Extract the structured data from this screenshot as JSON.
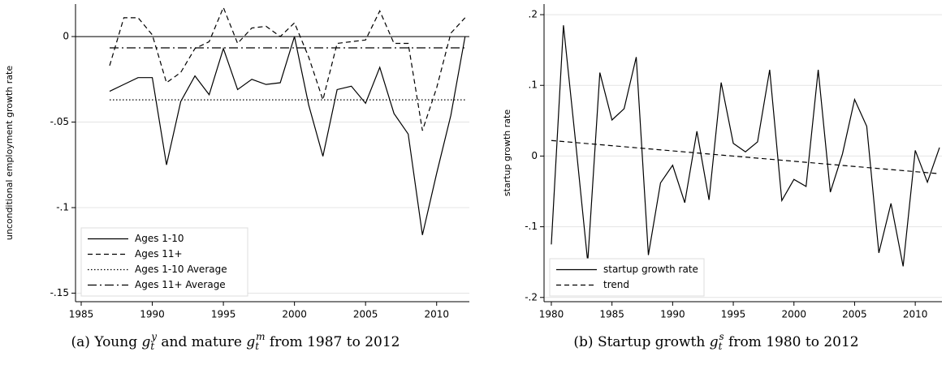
{
  "chart_data": [
    {
      "type": "line",
      "ylabel": "unconditional employment growth rate",
      "caption": [
        "(a) Young ",
        {
          "base": "g",
          "sub": "t",
          "sup": "y"
        },
        " and mature ",
        {
          "base": "g",
          "sub": "t",
          "sup": "m"
        },
        " from 1987 to 2012"
      ],
      "x": [
        1987,
        1988,
        1989,
        1990,
        1991,
        1992,
        1993,
        1994,
        1995,
        1996,
        1997,
        1998,
        1999,
        2000,
        2001,
        2002,
        2003,
        2004,
        2005,
        2006,
        2007,
        2008,
        2009,
        2010,
        2011,
        2012
      ],
      "series": [
        {
          "name": "Ages 1-10",
          "color": "#000000",
          "dash": "solid",
          "values": [
            -0.032,
            -0.028,
            -0.024,
            -0.024,
            -0.075,
            -0.038,
            -0.023,
            -0.034,
            -0.007,
            -0.031,
            -0.025,
            -0.028,
            -0.027,
            0.0,
            -0.04,
            -0.07,
            -0.031,
            -0.029,
            -0.039,
            -0.018,
            -0.045,
            -0.057,
            -0.116,
            -0.08,
            -0.046,
            0.0
          ]
        },
        {
          "name": "Ages 11+",
          "color": "#000000",
          "dash": "dashed",
          "values": [
            -0.017,
            0.011,
            0.011,
            0.001,
            -0.027,
            -0.021,
            -0.007,
            -0.003,
            0.017,
            -0.004,
            0.005,
            0.006,
            0.0,
            0.008,
            -0.012,
            -0.037,
            -0.004,
            -0.003,
            -0.002,
            0.015,
            -0.004,
            -0.004,
            -0.055,
            -0.03,
            0.002,
            0.011
          ]
        },
        {
          "name": "Ages 1-10 Average",
          "color": "#000000",
          "dash": "dotted",
          "x": [
            1987,
            2012
          ],
          "values": [
            -0.037,
            -0.037
          ]
        },
        {
          "name": "Ages 11+ Average",
          "color": "#000000",
          "dash": "dashdot",
          "x": [
            1987,
            2012
          ],
          "values": [
            -0.0066,
            -0.0066
          ]
        }
      ],
      "reference_line": 0,
      "xlim": [
        1984.6,
        2012.3
      ],
      "xticks": [
        1985,
        1990,
        1995,
        2000,
        2005,
        2010
      ],
      "ylim": [
        -0.155,
        0.019
      ],
      "yticks": [
        0,
        {
          "value": -0.05,
          "label": "-.05"
        },
        {
          "value": -0.1,
          "label": "-.1"
        },
        {
          "value": -0.15,
          "label": "-.15"
        }
      ],
      "grid": true,
      "legend": "lower-left"
    },
    {
      "type": "line",
      "ylabel": "startup growth rate",
      "caption": [
        "(b) Startup growth ",
        {
          "base": "g",
          "sub": "t",
          "sup": "s"
        },
        " from 1980 to 2012"
      ],
      "x": [
        1980,
        1981,
        1982,
        1983,
        1984,
        1985,
        1986,
        1987,
        1988,
        1989,
        1990,
        1991,
        1992,
        1993,
        1994,
        1995,
        1996,
        1997,
        1998,
        1999,
        2000,
        2001,
        2002,
        2003,
        2004,
        2005,
        2006,
        2007,
        2008,
        2009,
        2010,
        2011,
        2012
      ],
      "series": [
        {
          "name": "startup growth rate",
          "color": "#000000",
          "dash": "solid",
          "values": [
            -0.125,
            0.185,
            0.02,
            -0.15,
            0.118,
            0.051,
            0.067,
            0.14,
            -0.14,
            -0.038,
            -0.013,
            -0.066,
            0.035,
            -0.062,
            0.104,
            0.018,
            0.006,
            0.02,
            0.122,
            -0.063,
            -0.033,
            -0.043,
            0.122,
            -0.051,
            0.003,
            0.08,
            0.042,
            -0.137,
            -0.067,
            -0.156,
            0.008,
            -0.037,
            0.012
          ]
        },
        {
          "name": "trend",
          "color": "#000000",
          "dash": "dashed",
          "x": [
            1980,
            2012
          ],
          "values": [
            0.022,
            -0.025
          ]
        }
      ],
      "xlim": [
        1979.4,
        2012.2
      ],
      "xticks": [
        1980,
        1985,
        1990,
        1995,
        2000,
        2005,
        2010
      ],
      "ylim": [
        -0.206,
        0.215
      ],
      "yticks": [
        {
          "value": 0.2,
          "label": ".2"
        },
        {
          "value": 0.1,
          "label": ".1"
        },
        0,
        {
          "value": -0.1,
          "label": "-.1"
        },
        {
          "value": -0.2,
          "label": "-.2"
        }
      ],
      "grid": true,
      "legend": "lower-left"
    }
  ]
}
